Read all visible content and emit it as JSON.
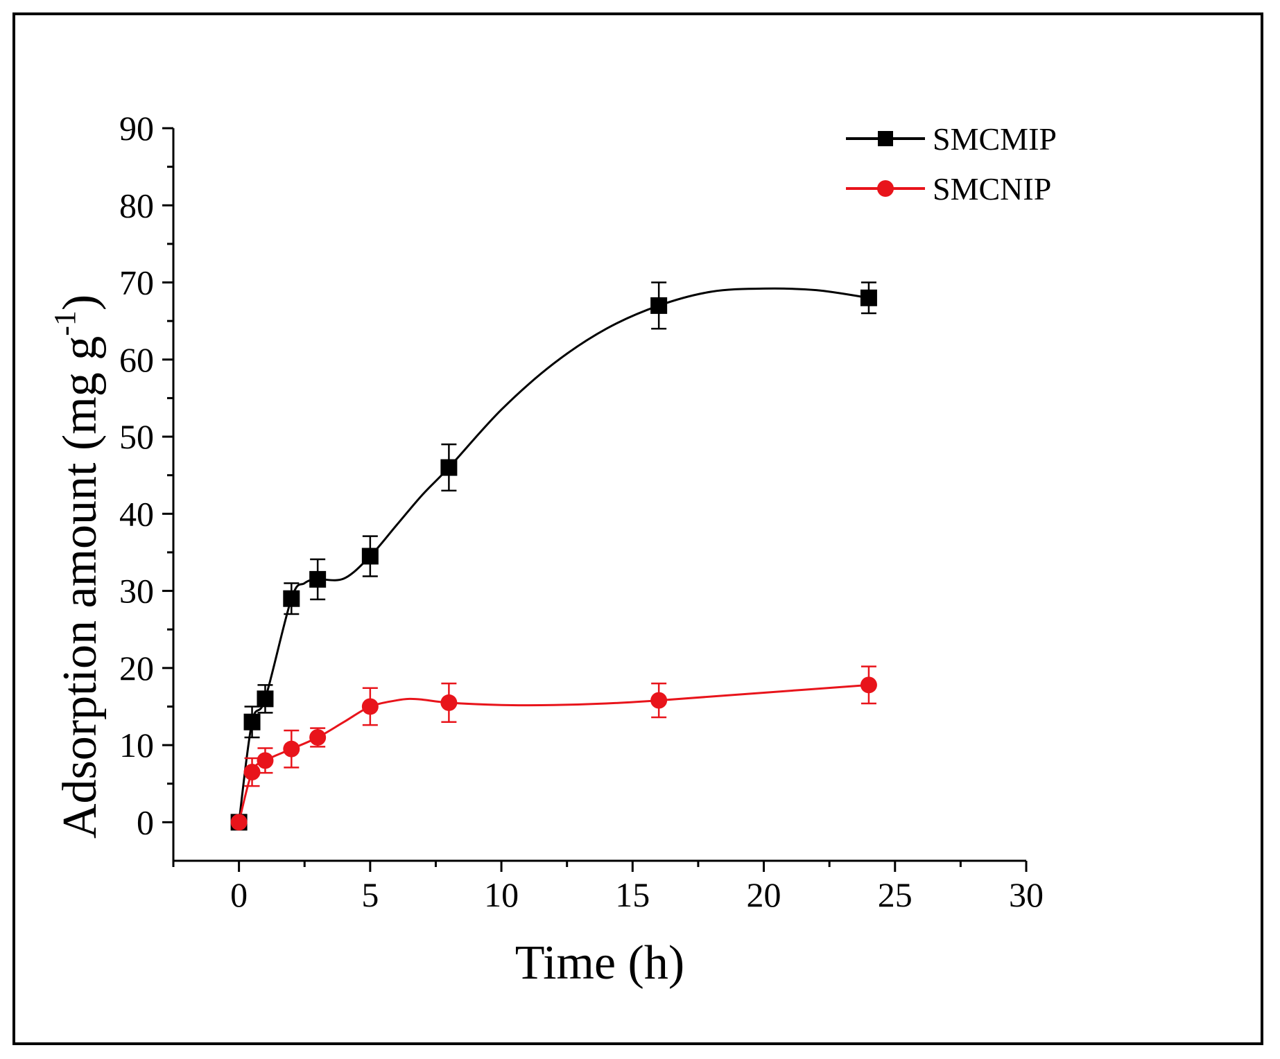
{
  "chart_data": {
    "type": "line",
    "title": "",
    "xlabel": "Time (h)",
    "ylabel_main": "Adsorption amount (mg g",
    "ylabel_sup": "-1",
    "ylabel_close": ")",
    "xlim": [
      -2.5,
      30
    ],
    "ylim": [
      -5,
      90
    ],
    "xticks": [
      0,
      5,
      10,
      15,
      20,
      25,
      30
    ],
    "yticks": [
      0,
      10,
      20,
      30,
      40,
      50,
      60,
      70,
      80,
      90
    ],
    "grid": false,
    "legend_position": "top-right",
    "series": [
      {
        "name": "SMCMIP",
        "color": "#000000",
        "marker": "square",
        "x": [
          0,
          0.5,
          1,
          2,
          3,
          5,
          8,
          16,
          24
        ],
        "y": [
          0,
          13,
          16,
          29,
          31.5,
          34.5,
          46,
          67,
          68
        ],
        "err": [
          0,
          2,
          1.8,
          2,
          2.6,
          2.6,
          3,
          3,
          2
        ],
        "curve_x": [
          0,
          0.5,
          1,
          2,
          2.5,
          3,
          4,
          5,
          6,
          7,
          8,
          10,
          12,
          14,
          16,
          18,
          20,
          22,
          24
        ],
        "curve_y": [
          0,
          13,
          16,
          29,
          31,
          31.5,
          31.6,
          34.5,
          38.5,
          42.5,
          46,
          53.5,
          59.5,
          64,
          67,
          68.8,
          69.2,
          69,
          68
        ]
      },
      {
        "name": "SMCNIP",
        "color": "#e8141b",
        "marker": "circle",
        "x": [
          0,
          0.5,
          1,
          2,
          3,
          5,
          8,
          16,
          24
        ],
        "y": [
          0,
          6.5,
          8,
          9.5,
          11,
          15,
          15.5,
          15.8,
          17.8
        ],
        "err": [
          0,
          1.8,
          1.6,
          2.4,
          1.2,
          2.4,
          2.5,
          2.2,
          2.4
        ],
        "curve_x": [
          0,
          0.5,
          1,
          2,
          3,
          4,
          5,
          6,
          6.5,
          7,
          8,
          10,
          12,
          14,
          16,
          20,
          24
        ],
        "curve_y": [
          0,
          6.5,
          8,
          9.5,
          11,
          13,
          15,
          15.8,
          16,
          15.9,
          15.5,
          15.2,
          15.2,
          15.4,
          15.8,
          16.8,
          17.8
        ]
      }
    ]
  }
}
